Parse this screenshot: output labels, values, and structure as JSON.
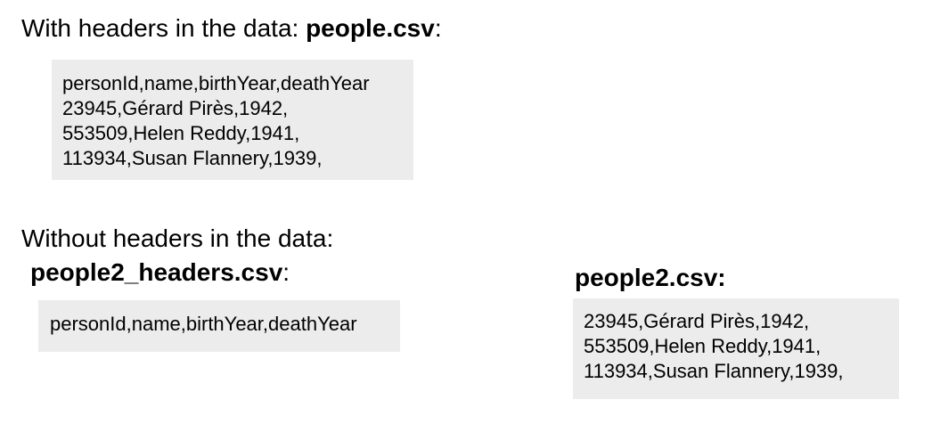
{
  "section_with_headers": {
    "heading_prefix": "With headers in the data: ",
    "filename": "people.csv",
    "suffix": ":",
    "lines": [
      "personId,name,birthYear,deathYear",
      "23945,Gérard Pirès,1942,",
      "553509,Helen Reddy,1941,",
      "113934,Susan Flannery,1939,"
    ]
  },
  "section_without_headers": {
    "heading": "Without headers in the data:",
    "headers_file": {
      "filename": "people2_headers.csv",
      "suffix": ":",
      "lines": [
        "personId,name,birthYear,deathYear"
      ]
    },
    "data_file": {
      "filename": "people2.csv:",
      "lines": [
        "23945,Gérard Pirès,1942,",
        "553509,Helen Reddy,1941,",
        "113934,Susan Flannery,1939,"
      ]
    }
  }
}
